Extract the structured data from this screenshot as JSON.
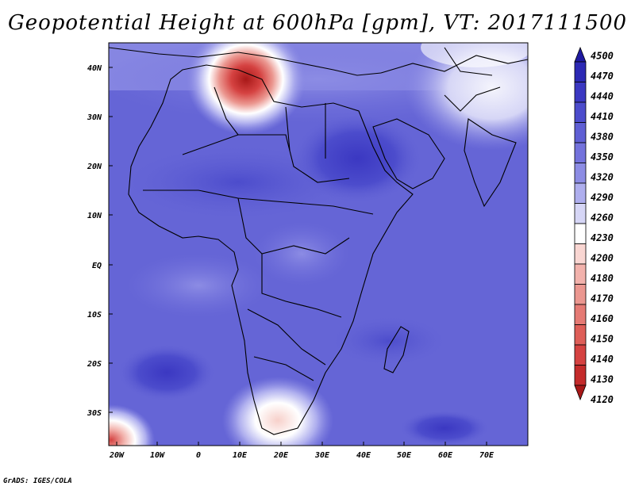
{
  "title": "Geopotential Height at 600hPa [gpm], VT: 2017111500",
  "footer": "GrADS: IGES/COLA",
  "map": {
    "lat_labels": [
      "40N",
      "30N",
      "20N",
      "10N",
      "EQ",
      "10S",
      "20S",
      "30S"
    ],
    "lon_labels": [
      "20W",
      "10W",
      "0",
      "10E",
      "20E",
      "30E",
      "40E",
      "50E",
      "60E",
      "70E"
    ],
    "lat_range": [
      -36,
      45
    ],
    "lon_range": [
      -22,
      80
    ]
  },
  "colorbar": {
    "levels": [
      "4500",
      "4470",
      "4440",
      "4410",
      "4380",
      "4350",
      "4320",
      "4290",
      "4260",
      "4230",
      "4200",
      "4180",
      "4170",
      "4160",
      "4150",
      "4140",
      "4130",
      "4120"
    ],
    "colors": [
      "#1f1aa0",
      "#2c29b4",
      "#3b38c2",
      "#4c4ccc",
      "#5f5fd4",
      "#7372dc",
      "#8c8ce4",
      "#aeaeee",
      "#d6d6f6",
      "#ffffff",
      "#f9d6d2",
      "#f2b2ac",
      "#eb9790",
      "#e57a74",
      "#de5e58",
      "#d54241",
      "#c42b2b",
      "#a81818"
    ]
  }
}
